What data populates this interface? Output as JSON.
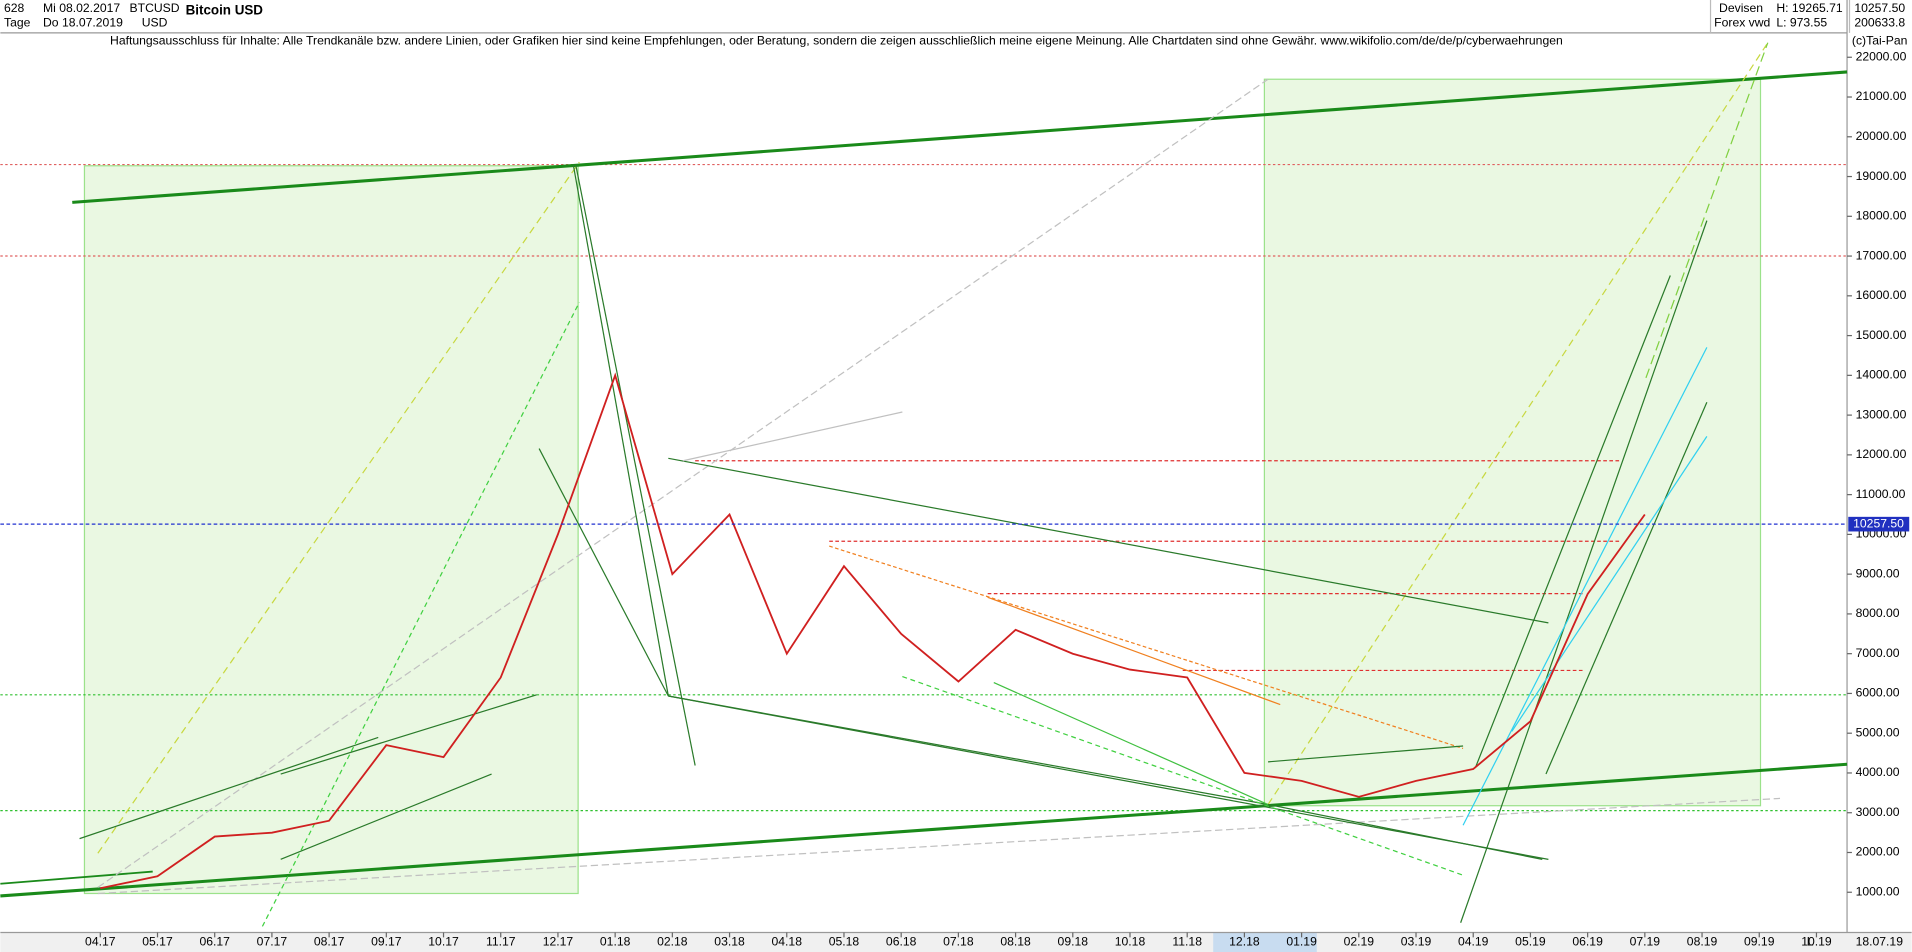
{
  "header": {
    "count": "628",
    "start_date": "Mi 08.02.2017",
    "end_date": "Do 18.07.2019",
    "period": "Tage",
    "symbol": "BTCUSD",
    "currency": "USD",
    "name": "Bitcoin USD",
    "disclaimer": "Haftungsausschluss für Inhalte: Alle Trendkanäle bzw. andere Linien, oder Grafiken hier sind keine Empfehlungen, oder Beratung, sondern die zeigen ausschließlich meine eigene Meinung. Alle Chartdaten sind ohne Gewähr.  www.wikifolio.com/de/de/p/cyberwaehrungen",
    "market": "Devisen",
    "source": "Forex vwd",
    "high": "H: 19265.71",
    "low": "L: 973.55",
    "last": "10257.50",
    "volume": "200633.8",
    "copyright": "(c)Tai-Pan",
    "axis_date": "18.07.19",
    "axis_mode": "L"
  },
  "chart_data": {
    "type": "line",
    "color": "#d02020",
    "categories": [
      "04.17",
      "05.17",
      "06.17",
      "07.17",
      "08.17",
      "09.17",
      "10.17",
      "11.17",
      "12.17",
      "01.18",
      "02.18",
      "03.18",
      "04.18",
      "05.18",
      "06.18",
      "07.18",
      "08.18",
      "09.18",
      "10.18",
      "11.18",
      "12.18",
      "01.19",
      "02.19",
      "03.19",
      "04.19",
      "05.19",
      "06.19",
      "07.19",
      "08.19",
      "09.19",
      "10.19"
    ],
    "values": [
      1100,
      1400,
      2400,
      2500,
      2800,
      4700,
      4400,
      6400,
      10000,
      14000,
      9000,
      10500,
      7000,
      9200,
      7500,
      6300,
      7600,
      7000,
      6600,
      6400,
      4000,
      3800,
      3400,
      3800,
      4100,
      5300,
      8500,
      10500,
      null,
      null,
      null
    ],
    "last_price": {
      "value": 10257.5,
      "label": "10257.50"
    },
    "ylim": [
      0,
      22600
    ],
    "yticks": [
      {
        "value": 1000,
        "label": "1000.00"
      },
      {
        "value": 2000,
        "label": "2000.00"
      },
      {
        "value": 3000,
        "label": "3000.00"
      },
      {
        "value": 4000,
        "label": "4000.00"
      },
      {
        "value": 5000,
        "label": "5000.00"
      },
      {
        "value": 6000,
        "label": "6000.00"
      },
      {
        "value": 7000,
        "label": "7000.00"
      },
      {
        "value": 8000,
        "label": "8000.00"
      },
      {
        "value": 9000,
        "label": "9000.00"
      },
      {
        "value": 10000,
        "label": "10000.00"
      },
      {
        "value": 11000,
        "label": "11000.00"
      },
      {
        "value": 12000,
        "label": "12000.00"
      },
      {
        "value": 13000,
        "label": "13000.00"
      },
      {
        "value": 14000,
        "label": "14000.00"
      },
      {
        "value": 15000,
        "label": "15000.00"
      },
      {
        "value": 16000,
        "label": "16000.00"
      },
      {
        "value": 17000,
        "label": "17000.00"
      },
      {
        "value": 18000,
        "label": "18000.00"
      },
      {
        "value": 19000,
        "label": "19000.00"
      },
      {
        "value": 20000,
        "label": "20000.00"
      },
      {
        "value": 21000,
        "label": "21000.00"
      },
      {
        "value": 22000,
        "label": "22000.00"
      }
    ]
  }
}
